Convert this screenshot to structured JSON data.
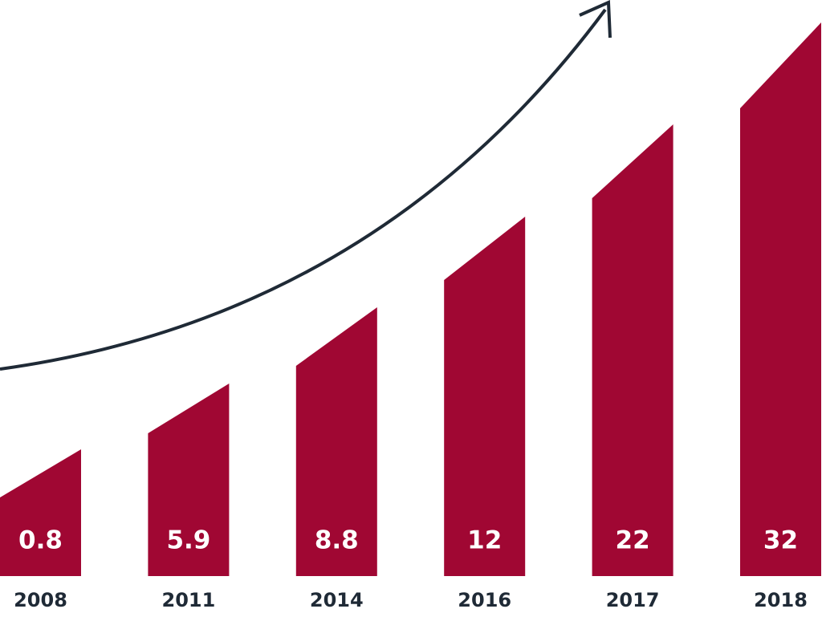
{
  "chart_data": {
    "type": "bar",
    "categories": [
      "2008",
      "2011",
      "2014",
      "2016",
      "2017",
      "2018"
    ],
    "values": [
      0.8,
      5.9,
      8.8,
      12,
      22,
      32
    ],
    "color": "#a00733"
  }
}
